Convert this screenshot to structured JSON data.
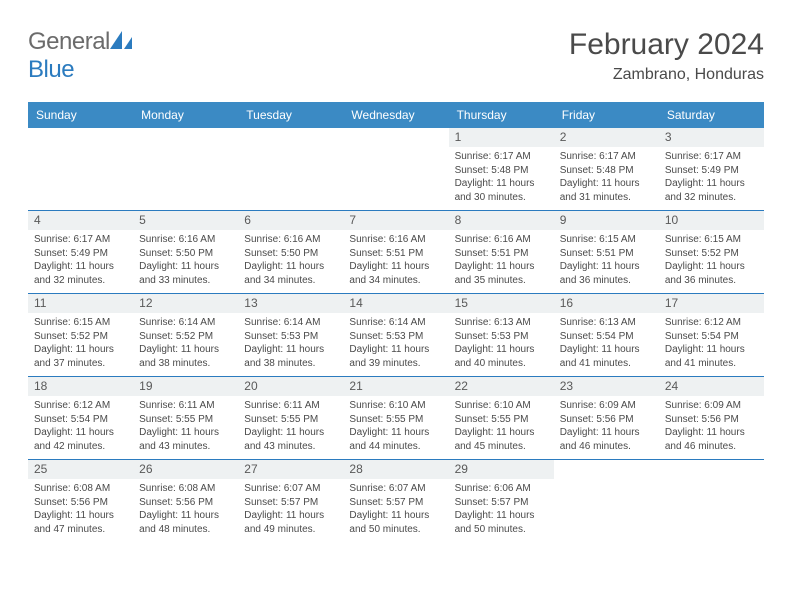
{
  "colors": {
    "header_bg": "#3b8ac4",
    "header_text": "#ffffff",
    "daynum_bg": "#eef1f2",
    "daynum_text": "#595959",
    "body_text": "#4a4a4a",
    "row_separator": "#2b7bbf",
    "logo_gray": "#6b6b6b",
    "logo_blue": "#2b7bbf",
    "page_bg": "#ffffff"
  },
  "logo": {
    "text_part1": "General",
    "text_part2": "Blue"
  },
  "title": "February 2024",
  "location": "Zambrano, Honduras",
  "weekday_labels": [
    "Sunday",
    "Monday",
    "Tuesday",
    "Wednesday",
    "Thursday",
    "Friday",
    "Saturday"
  ],
  "weeks": [
    [
      null,
      null,
      null,
      null,
      {
        "day": "1",
        "sunrise": "Sunrise: 6:17 AM",
        "sunset": "Sunset: 5:48 PM",
        "daylight": "Daylight: 11 hours and 30 minutes."
      },
      {
        "day": "2",
        "sunrise": "Sunrise: 6:17 AM",
        "sunset": "Sunset: 5:48 PM",
        "daylight": "Daylight: 11 hours and 31 minutes."
      },
      {
        "day": "3",
        "sunrise": "Sunrise: 6:17 AM",
        "sunset": "Sunset: 5:49 PM",
        "daylight": "Daylight: 11 hours and 32 minutes."
      }
    ],
    [
      {
        "day": "4",
        "sunrise": "Sunrise: 6:17 AM",
        "sunset": "Sunset: 5:49 PM",
        "daylight": "Daylight: 11 hours and 32 minutes."
      },
      {
        "day": "5",
        "sunrise": "Sunrise: 6:16 AM",
        "sunset": "Sunset: 5:50 PM",
        "daylight": "Daylight: 11 hours and 33 minutes."
      },
      {
        "day": "6",
        "sunrise": "Sunrise: 6:16 AM",
        "sunset": "Sunset: 5:50 PM",
        "daylight": "Daylight: 11 hours and 34 minutes."
      },
      {
        "day": "7",
        "sunrise": "Sunrise: 6:16 AM",
        "sunset": "Sunset: 5:51 PM",
        "daylight": "Daylight: 11 hours and 34 minutes."
      },
      {
        "day": "8",
        "sunrise": "Sunrise: 6:16 AM",
        "sunset": "Sunset: 5:51 PM",
        "daylight": "Daylight: 11 hours and 35 minutes."
      },
      {
        "day": "9",
        "sunrise": "Sunrise: 6:15 AM",
        "sunset": "Sunset: 5:51 PM",
        "daylight": "Daylight: 11 hours and 36 minutes."
      },
      {
        "day": "10",
        "sunrise": "Sunrise: 6:15 AM",
        "sunset": "Sunset: 5:52 PM",
        "daylight": "Daylight: 11 hours and 36 minutes."
      }
    ],
    [
      {
        "day": "11",
        "sunrise": "Sunrise: 6:15 AM",
        "sunset": "Sunset: 5:52 PM",
        "daylight": "Daylight: 11 hours and 37 minutes."
      },
      {
        "day": "12",
        "sunrise": "Sunrise: 6:14 AM",
        "sunset": "Sunset: 5:52 PM",
        "daylight": "Daylight: 11 hours and 38 minutes."
      },
      {
        "day": "13",
        "sunrise": "Sunrise: 6:14 AM",
        "sunset": "Sunset: 5:53 PM",
        "daylight": "Daylight: 11 hours and 38 minutes."
      },
      {
        "day": "14",
        "sunrise": "Sunrise: 6:14 AM",
        "sunset": "Sunset: 5:53 PM",
        "daylight": "Daylight: 11 hours and 39 minutes."
      },
      {
        "day": "15",
        "sunrise": "Sunrise: 6:13 AM",
        "sunset": "Sunset: 5:53 PM",
        "daylight": "Daylight: 11 hours and 40 minutes."
      },
      {
        "day": "16",
        "sunrise": "Sunrise: 6:13 AM",
        "sunset": "Sunset: 5:54 PM",
        "daylight": "Daylight: 11 hours and 41 minutes."
      },
      {
        "day": "17",
        "sunrise": "Sunrise: 6:12 AM",
        "sunset": "Sunset: 5:54 PM",
        "daylight": "Daylight: 11 hours and 41 minutes."
      }
    ],
    [
      {
        "day": "18",
        "sunrise": "Sunrise: 6:12 AM",
        "sunset": "Sunset: 5:54 PM",
        "daylight": "Daylight: 11 hours and 42 minutes."
      },
      {
        "day": "19",
        "sunrise": "Sunrise: 6:11 AM",
        "sunset": "Sunset: 5:55 PM",
        "daylight": "Daylight: 11 hours and 43 minutes."
      },
      {
        "day": "20",
        "sunrise": "Sunrise: 6:11 AM",
        "sunset": "Sunset: 5:55 PM",
        "daylight": "Daylight: 11 hours and 43 minutes."
      },
      {
        "day": "21",
        "sunrise": "Sunrise: 6:10 AM",
        "sunset": "Sunset: 5:55 PM",
        "daylight": "Daylight: 11 hours and 44 minutes."
      },
      {
        "day": "22",
        "sunrise": "Sunrise: 6:10 AM",
        "sunset": "Sunset: 5:55 PM",
        "daylight": "Daylight: 11 hours and 45 minutes."
      },
      {
        "day": "23",
        "sunrise": "Sunrise: 6:09 AM",
        "sunset": "Sunset: 5:56 PM",
        "daylight": "Daylight: 11 hours and 46 minutes."
      },
      {
        "day": "24",
        "sunrise": "Sunrise: 6:09 AM",
        "sunset": "Sunset: 5:56 PM",
        "daylight": "Daylight: 11 hours and 46 minutes."
      }
    ],
    [
      {
        "day": "25",
        "sunrise": "Sunrise: 6:08 AM",
        "sunset": "Sunset: 5:56 PM",
        "daylight": "Daylight: 11 hours and 47 minutes."
      },
      {
        "day": "26",
        "sunrise": "Sunrise: 6:08 AM",
        "sunset": "Sunset: 5:56 PM",
        "daylight": "Daylight: 11 hours and 48 minutes."
      },
      {
        "day": "27",
        "sunrise": "Sunrise: 6:07 AM",
        "sunset": "Sunset: 5:57 PM",
        "daylight": "Daylight: 11 hours and 49 minutes."
      },
      {
        "day": "28",
        "sunrise": "Sunrise: 6:07 AM",
        "sunset": "Sunset: 5:57 PM",
        "daylight": "Daylight: 11 hours and 50 minutes."
      },
      {
        "day": "29",
        "sunrise": "Sunrise: 6:06 AM",
        "sunset": "Sunset: 5:57 PM",
        "daylight": "Daylight: 11 hours and 50 minutes."
      },
      null,
      null
    ]
  ]
}
